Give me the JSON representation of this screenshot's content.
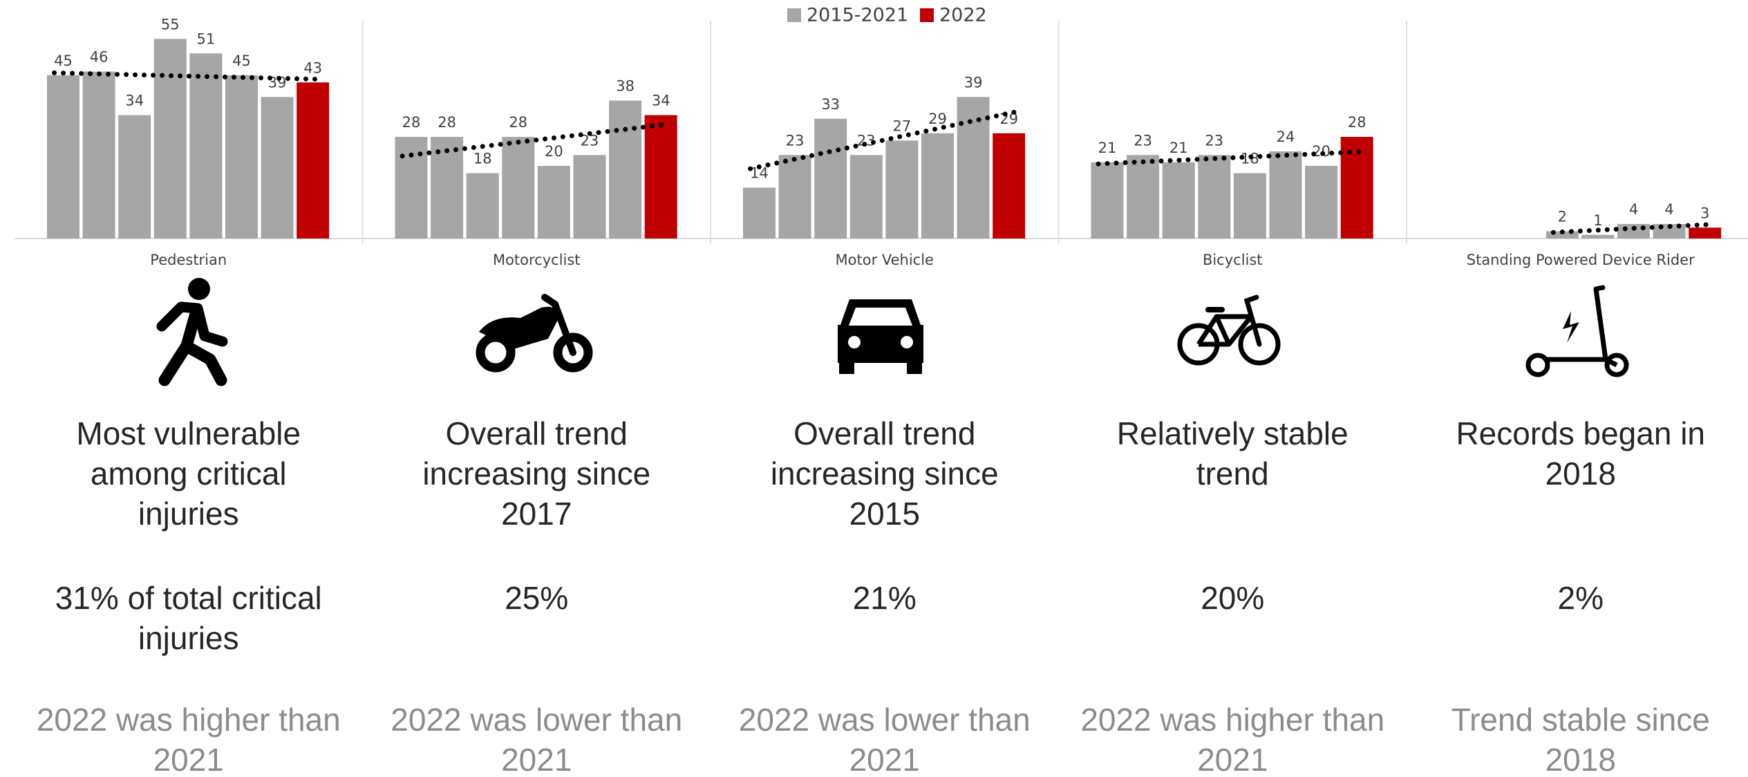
{
  "chart_data": {
    "type": "bar",
    "series": [
      {
        "name": "2015-2021",
        "color": "#a6a6a6"
      },
      {
        "name": "2022",
        "color": "#c00000"
      }
    ],
    "trendline": true,
    "groups": [
      {
        "category": "Pedestrian",
        "values": [
          45,
          46,
          34,
          55,
          51,
          45,
          39,
          43
        ],
        "description": "Most vulnerable among critical injuries",
        "share": "31% of total critical injuries",
        "comparison": "2022 was higher than 2021"
      },
      {
        "category": "Motorcyclist",
        "values": [
          28,
          28,
          18,
          28,
          20,
          23,
          38,
          34
        ],
        "description": "Overall trend increasing since 2017",
        "share": "25%",
        "comparison": "2022 was lower than 2021"
      },
      {
        "category": "Motor Vehicle",
        "values": [
          14,
          23,
          33,
          23,
          27,
          29,
          39,
          29
        ],
        "description": "Overall trend increasing since 2015",
        "share": "21%",
        "comparison": "2022 was lower than 2021"
      },
      {
        "category": "Bicyclist",
        "values": [
          21,
          23,
          21,
          23,
          18,
          24,
          20,
          28
        ],
        "description": "Relatively stable trend",
        "share": "20%",
        "comparison": "2022 was higher than 2021"
      },
      {
        "category": "Standing Powered Device Rider",
        "values": [
          null,
          null,
          null,
          2,
          1,
          4,
          4,
          3
        ],
        "description": "Records began in 2018",
        "share": "2%",
        "comparison": "Trend stable since 2018"
      }
    ]
  }
}
